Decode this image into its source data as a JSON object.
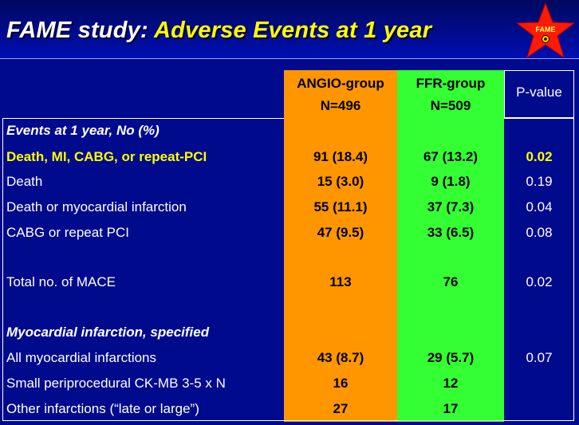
{
  "slide": {
    "title_part1": "FAME study",
    "title_colon": ":",
    "title_part2": " Adverse Events at 1 year",
    "logo_text": "FAME"
  },
  "colors": {
    "background": "#000a8c",
    "angio_column": "#ff9600",
    "ffr_column": "#33ff33",
    "highlight_text": "#ffff00",
    "logo_star": "#ff1a00"
  },
  "table": {
    "headers": {
      "angio_line1": "ANGIO-group",
      "angio_line2": "N=496",
      "ffr_line1": "FFR-group",
      "ffr_line2": "N=509",
      "pvalue": "P-value"
    },
    "rows": [
      {
        "label": "Events at 1 year, No (%)",
        "angio": "",
        "ffr": "",
        "p": ""
      },
      {
        "label": "Death, MI, CABG, or repeat-PCI",
        "angio": "91 (18.4)",
        "ffr": "67 (13.2)",
        "p": "0.02"
      },
      {
        "label": "Death",
        "angio": "15 (3.0)",
        "ffr": "9 (1.8)",
        "p": "0.19"
      },
      {
        "label": "Death or myocardial infarction",
        "angio": "55 (11.1)",
        "ffr": "37 (7.3)",
        "p": "0.04"
      },
      {
        "label": "CABG or repeat PCI",
        "angio": "47 (9.5)",
        "ffr": "33 (6.5)",
        "p": "0.08"
      },
      {
        "label": "Total no. of MACE",
        "angio": "113",
        "ffr": "76",
        "p": "0.02"
      },
      {
        "label": "Myocardial infarction, specified",
        "angio": "",
        "ffr": "",
        "p": ""
      },
      {
        "label": "All myocardial infarctions",
        "angio": "43 (8.7)",
        "ffr": "29 (5.7)",
        "p": "0.07"
      },
      {
        "label": "Small periprocedural CK-MB 3-5 x N",
        "angio": "16",
        "ffr": "12",
        "p": ""
      },
      {
        "label": "Other infarctions (“late or large”)",
        "angio": "27",
        "ffr": "17",
        "p": ""
      }
    ]
  }
}
